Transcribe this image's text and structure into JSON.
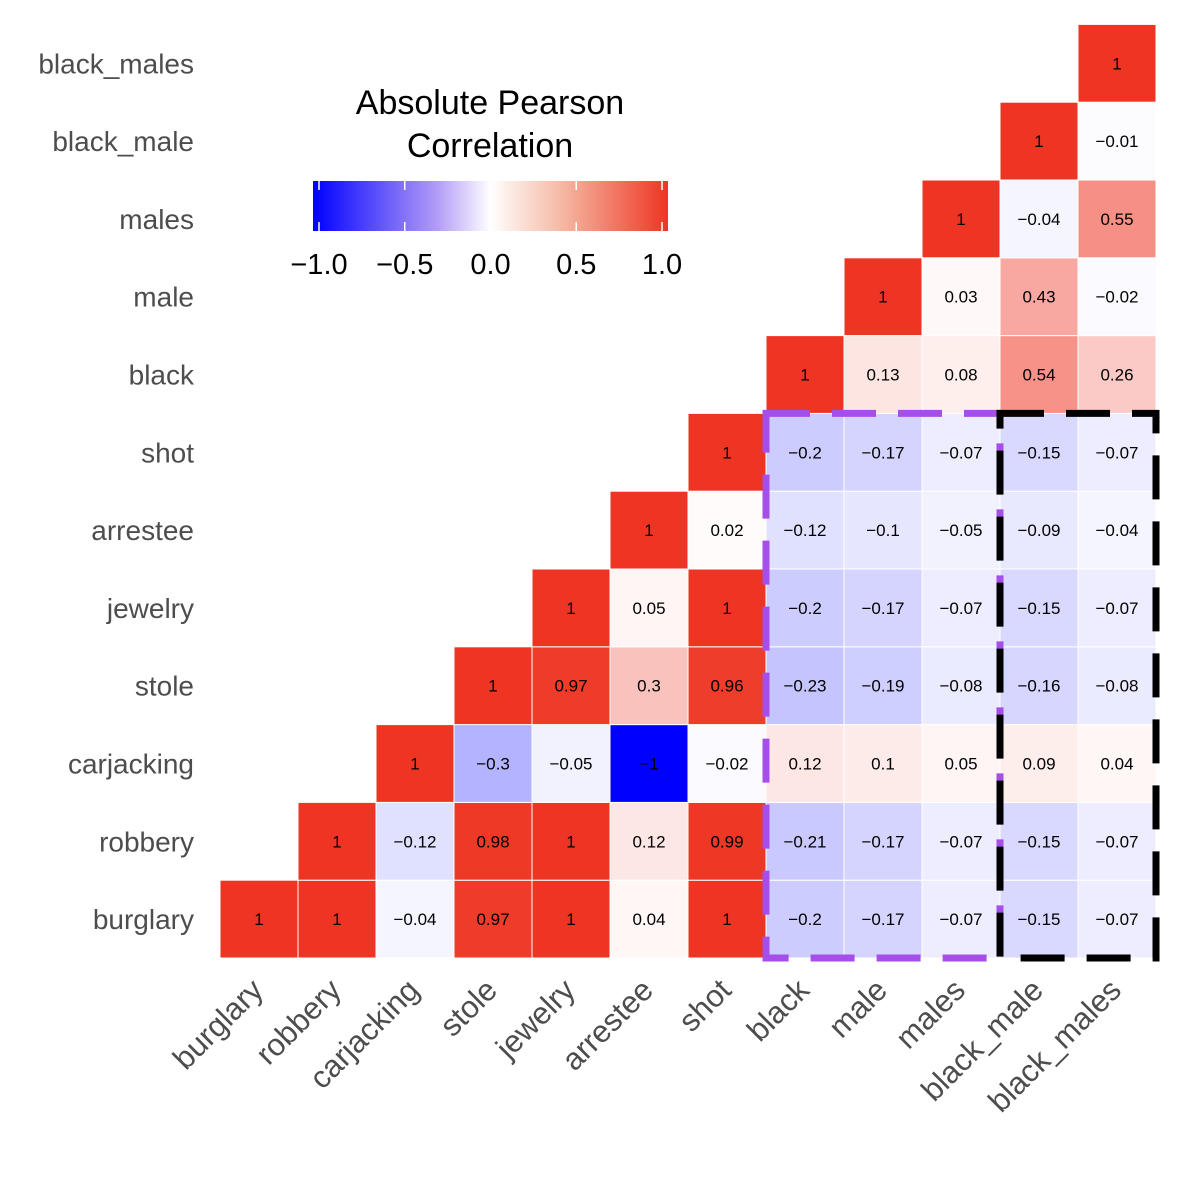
{
  "chart_data": {
    "type": "heatmap",
    "variables": [
      "burglary",
      "robbery",
      "carjacking",
      "stole",
      "jewelry",
      "arrestee",
      "shot",
      "black",
      "male",
      "males",
      "black_male",
      "black_males"
    ],
    "matrix": [
      [
        1,
        1,
        -0.04,
        0.97,
        1,
        0.04,
        1,
        -0.2,
        -0.17,
        -0.07,
        -0.15,
        -0.07
      ],
      [
        null,
        1,
        -0.12,
        0.98,
        1,
        0.12,
        0.99,
        -0.21,
        -0.17,
        -0.07,
        -0.15,
        -0.07
      ],
      [
        null,
        null,
        1,
        -0.3,
        -0.05,
        -1,
        -0.02,
        0.12,
        0.1,
        0.05,
        0.09,
        0.04
      ],
      [
        null,
        null,
        null,
        1,
        0.97,
        0.3,
        0.96,
        -0.23,
        -0.19,
        -0.08,
        -0.16,
        -0.08
      ],
      [
        null,
        null,
        null,
        null,
        1,
        0.05,
        1,
        -0.2,
        -0.17,
        -0.07,
        -0.15,
        -0.07
      ],
      [
        null,
        null,
        null,
        null,
        null,
        1,
        0.02,
        -0.12,
        -0.1,
        -0.05,
        -0.09,
        -0.04
      ],
      [
        null,
        null,
        null,
        null,
        null,
        null,
        1,
        -0.2,
        -0.17,
        -0.07,
        -0.15,
        -0.07
      ],
      [
        null,
        null,
        null,
        null,
        null,
        null,
        null,
        1,
        0.13,
        0.08,
        0.54,
        0.26
      ],
      [
        null,
        null,
        null,
        null,
        null,
        null,
        null,
        null,
        1,
        0.03,
        0.43,
        -0.02
      ],
      [
        null,
        null,
        null,
        null,
        null,
        null,
        null,
        null,
        null,
        1,
        -0.04,
        0.55
      ],
      [
        null,
        null,
        null,
        null,
        null,
        null,
        null,
        null,
        null,
        null,
        1,
        -0.01
      ],
      [
        null,
        null,
        null,
        null,
        null,
        null,
        null,
        null,
        null,
        null,
        null,
        1
      ]
    ],
    "legend": {
      "title_lines": [
        "Absolute Pearson",
        "Correlation"
      ],
      "ticks": [
        -1.0,
        -0.5,
        0.0,
        0.5,
        1.0
      ],
      "tick_labels": [
        "−1.0",
        "−0.5",
        "0.0",
        "0.5",
        "1.0"
      ],
      "range": [
        -1,
        1
      ],
      "placement": "top-left"
    },
    "colors": {
      "low": "#0000ff",
      "mid": "#ffffff",
      "high": "#ee3523",
      "purple_box": "#a64fe8",
      "black_box": "#000000"
    },
    "highlight_boxes": [
      {
        "name": "purple",
        "cols": [
          "black",
          "males"
        ],
        "rows": [
          "burglary",
          "shot"
        ],
        "style": "dashed",
        "color": "#a64fe8"
      },
      {
        "name": "black",
        "cols": [
          "black_male",
          "black_males"
        ],
        "rows": [
          "burglary",
          "shot"
        ],
        "style": "dashed",
        "color": "#000000"
      }
    ]
  }
}
